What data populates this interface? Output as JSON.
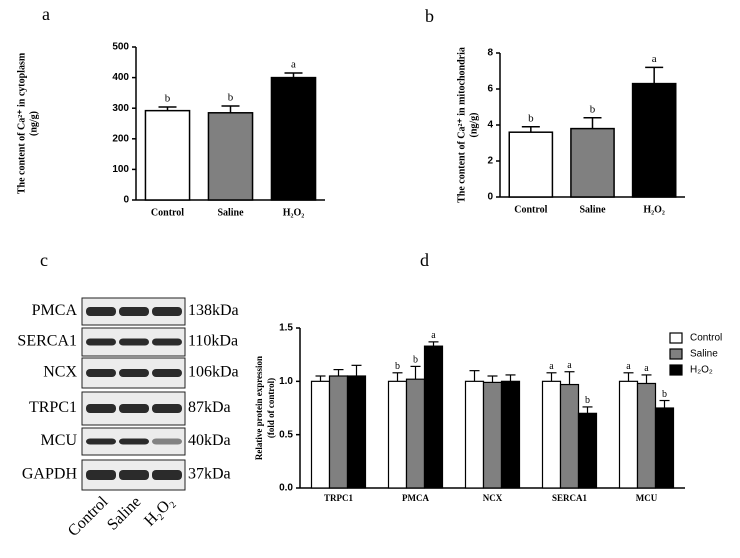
{
  "chart_data": [
    {
      "type": "bar",
      "panel_label": "a",
      "ylabel": [
        "The content of Ca²⁺ in cytoplasm",
        "(ng/g)"
      ],
      "categories": [
        "Control",
        "Saline",
        "H₂O₂"
      ],
      "values": [
        292,
        285,
        400
      ],
      "errors": [
        12,
        22,
        15
      ],
      "annotations": [
        "b",
        "b",
        "a"
      ],
      "colors": [
        "#ffffff",
        "#808080",
        "#000000"
      ],
      "ylim": [
        0,
        500
      ],
      "yticks": [
        0,
        100,
        200,
        300,
        400,
        500
      ]
    },
    {
      "type": "bar",
      "panel_label": "b",
      "ylabel": [
        "The content of Ca²⁺ in mitochondria",
        "(ng/g)"
      ],
      "categories": [
        "Control",
        "Saline",
        "H₂O₂"
      ],
      "values": [
        3.6,
        3.8,
        6.3
      ],
      "errors": [
        0.3,
        0.6,
        0.9
      ],
      "annotations": [
        "b",
        "b",
        "a"
      ],
      "colors": [
        "#ffffff",
        "#808080",
        "#000000"
      ],
      "ylim": [
        0,
        8
      ],
      "yticks": [
        0,
        2,
        4,
        6,
        8
      ]
    },
    {
      "type": "blot",
      "panel_label": "c",
      "rows": [
        {
          "protein": "PMCA",
          "size": "138kDa"
        },
        {
          "protein": "SERCA1",
          "size": "110kDa"
        },
        {
          "protein": "NCX",
          "size": "106kDa"
        },
        {
          "protein": "TRPC1",
          "size": "87kDa"
        },
        {
          "protein": "MCU",
          "size": "40kDa"
        },
        {
          "protein": "GAPDH",
          "size": "37kDa"
        }
      ],
      "lanes": [
        "Control",
        "Saline",
        "H₂O₂"
      ]
    },
    {
      "type": "grouped_bar",
      "panel_label": "d",
      "ylabel": [
        "Relative protein expression",
        "(fold of control)"
      ],
      "categories": [
        "TRPC1",
        "PMCA",
        "NCX",
        "SERCA1",
        "MCU"
      ],
      "series": [
        {
          "name": "Control",
          "color": "#ffffff",
          "values": [
            1.0,
            1.0,
            1.0,
            1.0,
            1.0
          ],
          "errors": [
            0.05,
            0.08,
            0.1,
            0.08,
            0.08
          ],
          "annotations": [
            null,
            "b",
            null,
            "a",
            "a"
          ]
        },
        {
          "name": "Saline",
          "color": "#808080",
          "values": [
            1.05,
            1.02,
            0.99,
            0.97,
            0.98
          ],
          "errors": [
            0.06,
            0.12,
            0.06,
            0.12,
            0.08
          ],
          "annotations": [
            null,
            "b",
            null,
            "a",
            "a"
          ]
        },
        {
          "name": "H₂O₂",
          "color": "#000000",
          "values": [
            1.05,
            1.33,
            1.0,
            0.7,
            0.75
          ],
          "errors": [
            0.1,
            0.04,
            0.06,
            0.06,
            0.07
          ],
          "annotations": [
            null,
            "a",
            null,
            "b",
            "b"
          ]
        }
      ],
      "ylim": [
        0,
        1.5
      ],
      "yticks": [
        {
          "value": 0,
          "label": "0.0"
        },
        0.5,
        {
          "value": 1,
          "label": "1.0"
        },
        1.5
      ]
    }
  ]
}
